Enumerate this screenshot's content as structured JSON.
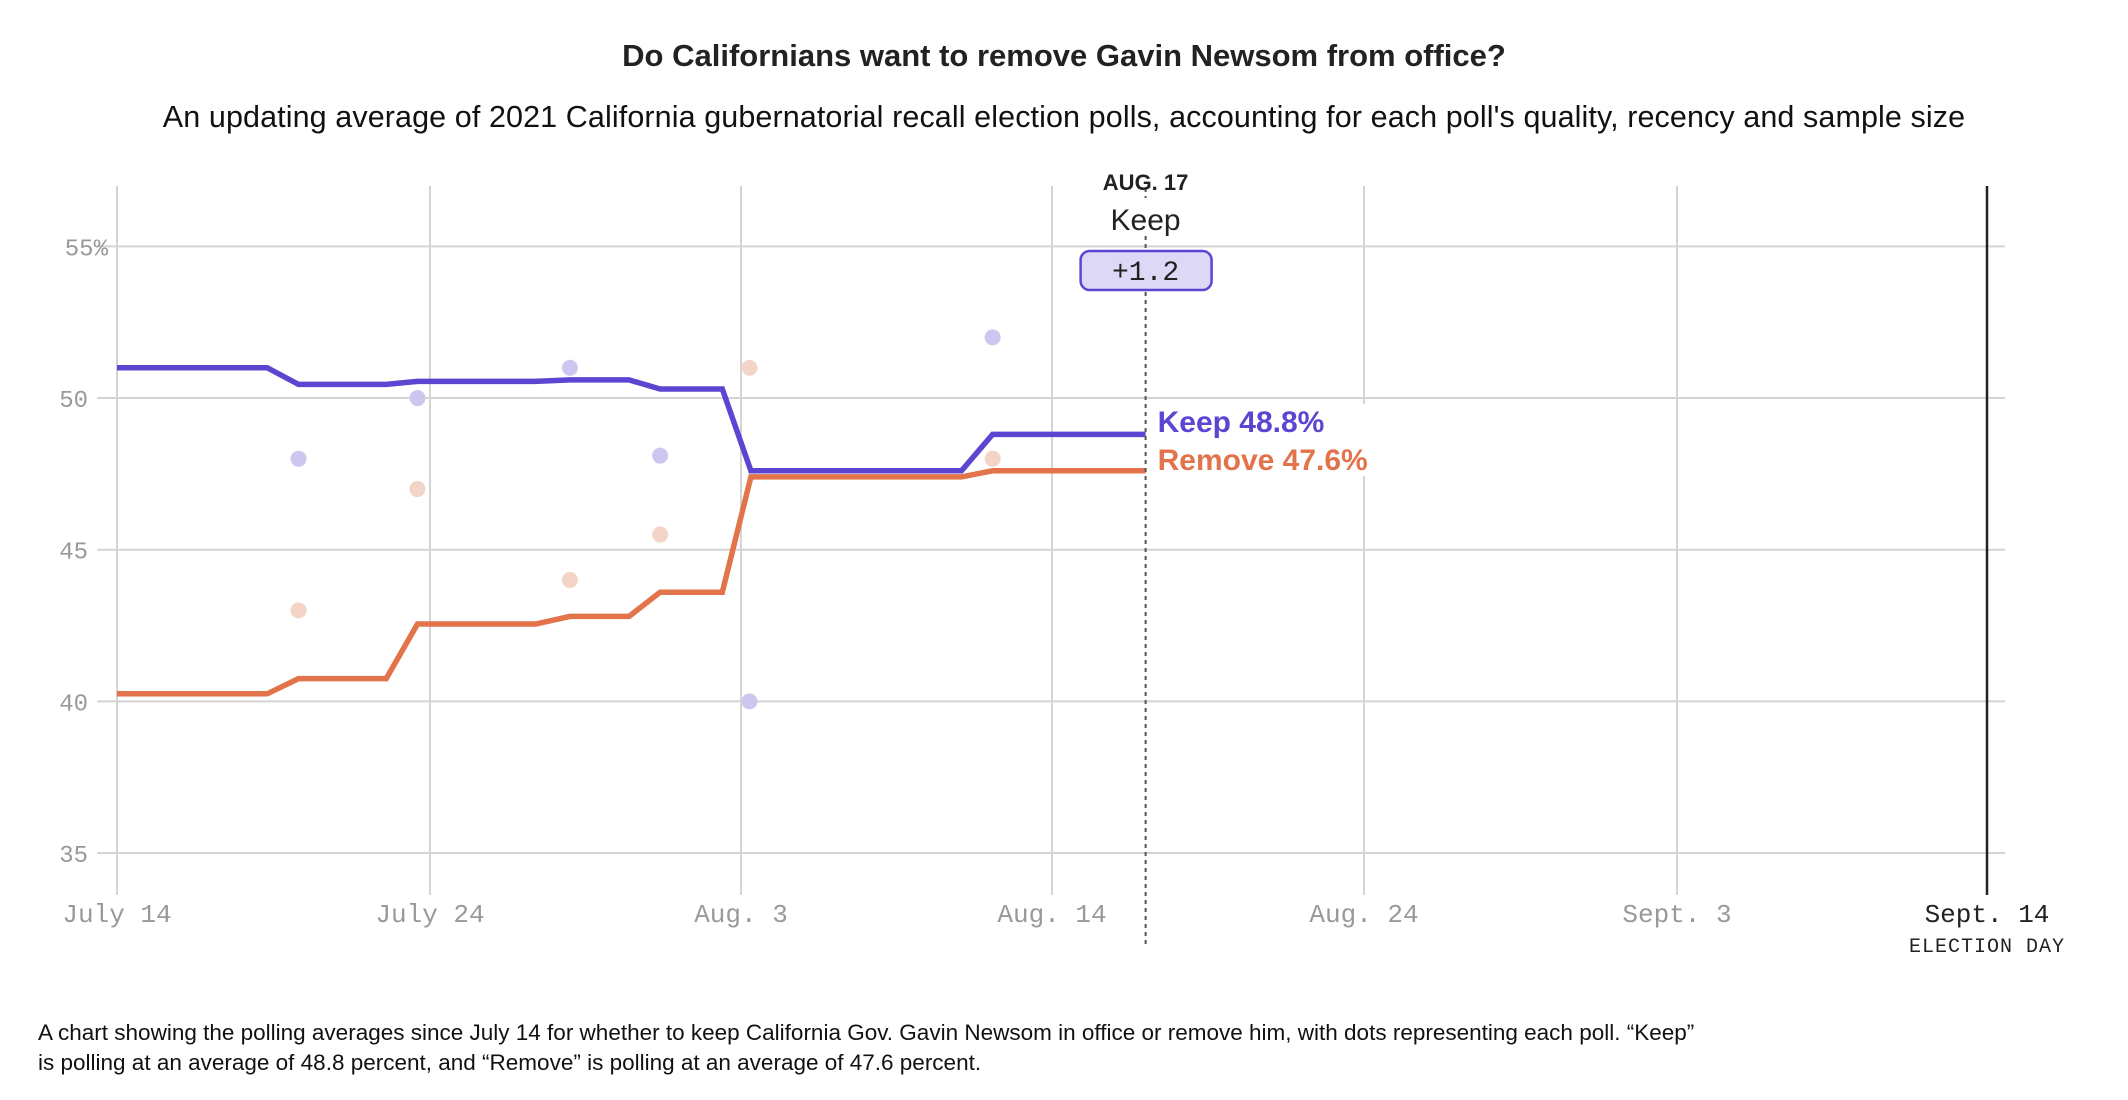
{
  "header": {
    "title": "Do Californians want to remove Gavin Newsom from office?",
    "subtitle": "An updating average of 2021 California gubernatorial recall election polls, accounting for each poll's quality, recency and sample size"
  },
  "footnote": {
    "line1": "A chart showing the polling averages since July 14 for whether to keep California Gov. Gavin Newsom in office or remove him, with dots representing each poll. “Keep”",
    "line2": "is polling at an average of 48.8 percent, and “Remove” is polling at an average of 47.6 percent."
  },
  "chart_data": {
    "type": "line",
    "title": "Do Californians want to remove Gavin Newsom from office?",
    "x_unit": "days since July 14, 2021",
    "xlim": [
      0,
      62
    ],
    "ylim": [
      35,
      56
    ],
    "grid": true,
    "y_ticks": [
      {
        "value": 55,
        "label": "55%"
      },
      {
        "value": 50,
        "label": "50"
      },
      {
        "value": 45,
        "label": "45"
      },
      {
        "value": 40,
        "label": "40"
      },
      {
        "value": 35,
        "label": "35"
      }
    ],
    "x_ticks": [
      {
        "day": 0,
        "label": "July 14"
      },
      {
        "day": 10,
        "label": "July 24"
      },
      {
        "day": 20,
        "label": "Aug. 3"
      },
      {
        "day": 31,
        "label": "Aug. 14"
      },
      {
        "day": 41,
        "label": "Aug. 24"
      },
      {
        "day": 51,
        "label": "Sept. 3"
      }
    ],
    "election_day": {
      "day": 62,
      "label": "Sept. 14",
      "sublabel": "ELECTION DAY"
    },
    "series": [
      {
        "name": "Keep",
        "color": "#5b45d1",
        "dot_color": "#cdc6f0",
        "end_label": "Keep 48.8%",
        "points": [
          [
            0,
            51.0
          ],
          [
            4.8,
            51.0
          ],
          [
            5.8,
            50.45
          ],
          [
            8.6,
            50.45
          ],
          [
            9.6,
            50.55
          ],
          [
            13.4,
            50.55
          ],
          [
            14.5,
            50.6
          ],
          [
            16.4,
            50.6
          ],
          [
            17.4,
            50.3
          ],
          [
            19.4,
            50.3
          ],
          [
            20.35,
            47.6
          ],
          [
            27.8,
            47.6
          ],
          [
            28.9,
            48.8
          ],
          [
            34,
            48.8
          ]
        ]
      },
      {
        "name": "Remove",
        "color": "#e2734a",
        "dot_color": "#f4d4c6",
        "end_label": "Remove 47.6%",
        "points": [
          [
            0,
            40.25
          ],
          [
            4.8,
            40.25
          ],
          [
            5.8,
            40.75
          ],
          [
            8.6,
            40.75
          ],
          [
            9.6,
            42.55
          ],
          [
            13.4,
            42.55
          ],
          [
            14.5,
            42.8
          ],
          [
            16.4,
            42.8
          ],
          [
            17.4,
            43.6
          ],
          [
            19.4,
            43.6
          ],
          [
            20.35,
            47.4
          ],
          [
            27.8,
            47.4
          ],
          [
            28.9,
            47.6
          ],
          [
            34,
            47.6
          ]
        ]
      }
    ],
    "polls": [
      {
        "day": 5.8,
        "keep": 48,
        "remove": 43
      },
      {
        "day": 9.6,
        "keep": 50,
        "remove": 47
      },
      {
        "day": 14.5,
        "keep": 51,
        "remove": 44
      },
      {
        "day": 17.4,
        "keep": 48.1,
        "remove": 45.5
      },
      {
        "day": 20.3,
        "keep": 40,
        "remove": 51
      },
      {
        "day": 28.9,
        "keep": 52,
        "remove": 48
      }
    ],
    "hover": {
      "day": 34,
      "date_label": "AUG. 17",
      "leader": "Keep",
      "margin": "+1.2",
      "box_fill": "#dcd8f5"
    }
  }
}
